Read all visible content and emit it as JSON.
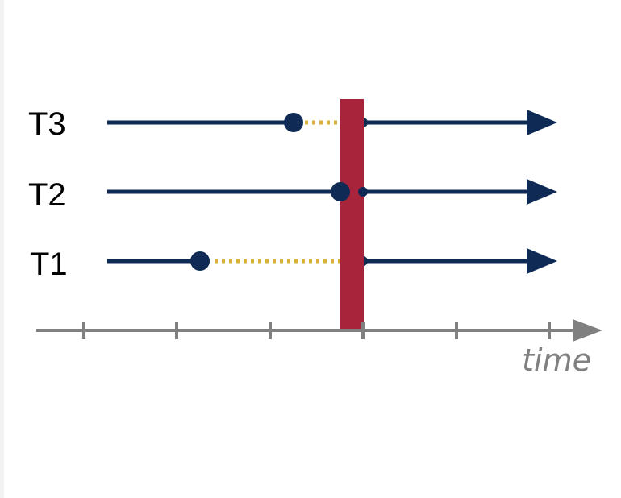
{
  "colors": {
    "thread_line": "#0e2a55",
    "barrier": "#a8243a",
    "wait": "#d9b13b",
    "axis": "#808080"
  },
  "axis": {
    "label": "time",
    "tick_count": 6
  },
  "threads": [
    {
      "label": "T3"
    },
    {
      "label": "T2"
    },
    {
      "label": "T1"
    }
  ]
}
